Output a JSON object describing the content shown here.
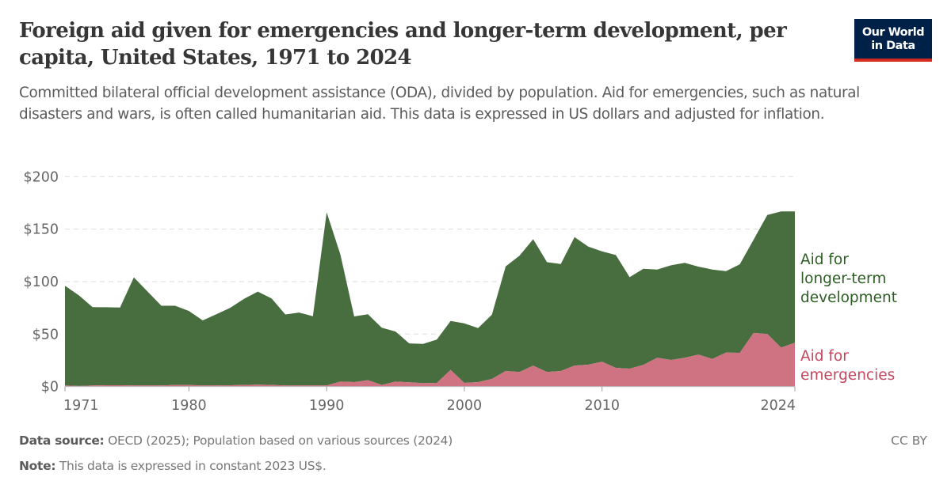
{
  "header": {
    "title": "Foreign aid given for emergencies and longer-term development, per capita, United States, 1971 to 2024",
    "subtitle": "Committed bilateral official development assistance (ODA), divided by population. Aid for emergencies, such as natural disasters and wars, is often called humanitarian aid. This data is expressed in US dollars and adjusted for inflation.",
    "logo_line1": "Our World",
    "logo_line2": "in Data"
  },
  "footer": {
    "source_label": "Data source:",
    "source_text": "OECD (2025); Population based on various sources (2024)",
    "note_label": "Note:",
    "note_text": "This data is expressed in constant 2023 US$.",
    "license": "CC BY"
  },
  "colors": {
    "development_fill": "#486d3e",
    "emergencies_fill": "#cf7383",
    "development_text": "#2c5e23",
    "emergencies_text": "#c4465f"
  },
  "chart_data": {
    "type": "area",
    "stacked": true,
    "title": "Foreign aid given for emergencies and longer-term development, per capita, United States, 1971 to 2024",
    "xlabel": "",
    "ylabel": "",
    "xlim": [
      1971,
      2024
    ],
    "ylim": [
      0,
      200
    ],
    "y_ticks": [
      0,
      50,
      100,
      150,
      200
    ],
    "y_tick_labels": [
      "$0",
      "$50",
      "$100",
      "$150",
      "$200"
    ],
    "x_ticks": [
      1971,
      1980,
      1990,
      2000,
      2010,
      2024
    ],
    "x_tick_labels": [
      "1971",
      "1980",
      "1990",
      "2000",
      "2010",
      "2024"
    ],
    "grid": "horizontal-dashed",
    "legend": "right (inline labels)",
    "x": [
      1971,
      1972,
      1973,
      1974,
      1975,
      1976,
      1977,
      1978,
      1979,
      1980,
      1981,
      1982,
      1983,
      1984,
      1985,
      1986,
      1987,
      1988,
      1989,
      1990,
      1991,
      1992,
      1993,
      1994,
      1995,
      1996,
      1997,
      1998,
      1999,
      2000,
      2001,
      2002,
      2003,
      2004,
      2005,
      2006,
      2007,
      2008,
      2009,
      2010,
      2011,
      2012,
      2013,
      2014,
      2015,
      2016,
      2017,
      2018,
      2019,
      2020,
      2021,
      2022,
      2023,
      2024
    ],
    "series": [
      {
        "name": "Aid for emergencies",
        "label_lines": [
          "Aid for",
          "emergencies"
        ],
        "values": [
          1.0,
          0.5,
          1.0,
          1.2,
          1.2,
          1.0,
          1.0,
          1.0,
          1.5,
          1.5,
          1.0,
          1.0,
          1.2,
          1.5,
          1.8,
          1.5,
          1.0,
          1.0,
          1.0,
          1.0,
          4.7,
          4.2,
          6.0,
          1.5,
          4.7,
          4.0,
          3.2,
          3.5,
          15.8,
          3.5,
          4.2,
          7.2,
          14.8,
          13.8,
          19.8,
          13.8,
          14.8,
          20.0,
          20.8,
          23.6,
          17.8,
          17.0,
          20.6,
          27.4,
          25.3,
          27.4,
          30.4,
          26.3,
          32.3,
          32.1,
          51.0,
          50.0,
          37.1,
          41.7
        ]
      },
      {
        "name": "Aid for longer-term development",
        "label_lines": [
          "Aid for",
          "longer-term",
          "development"
        ],
        "values": [
          95.0,
          86.5,
          74.6,
          74.3,
          74.1,
          103.0,
          89.5,
          76.0,
          75.5,
          70.5,
          62.0,
          68.0,
          73.8,
          82.0,
          88.7,
          82.5,
          67.7,
          69.5,
          66.0,
          165.0,
          121.1,
          62.6,
          62.8,
          54.5,
          47.7,
          37.1,
          37.4,
          41.2,
          46.7,
          56.7,
          51.5,
          61.3,
          99.7,
          110.8,
          120.6,
          104.7,
          101.9,
          122.4,
          112.5,
          105.2,
          107.5,
          87.2,
          91.6,
          84.1,
          90.2,
          90.4,
          83.8,
          85.2,
          77.7,
          84.4,
          88.9,
          113.5,
          129.7,
          125.1
        ]
      }
    ],
    "totals_note": "Top of stacked area = emergencies + longer-term development"
  }
}
